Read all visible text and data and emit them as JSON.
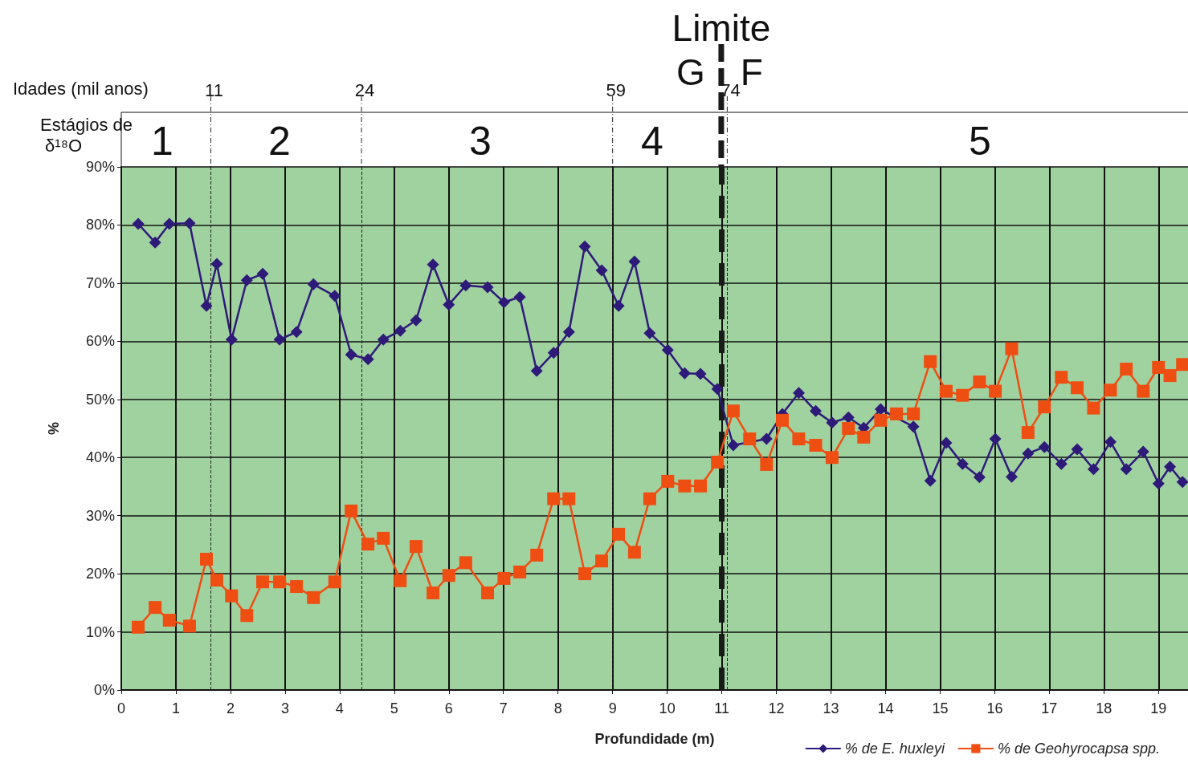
{
  "chart_data": {
    "type": "line",
    "xlabel": "Profundidade (m)",
    "ylabel": "%",
    "xlim": [
      0,
      19.54
    ],
    "xticks": [
      0,
      1,
      2,
      3,
      4,
      5,
      6,
      7,
      8,
      9,
      10,
      11,
      12,
      13,
      14,
      15,
      16,
      17,
      18,
      19
    ],
    "ylim": [
      0,
      90
    ],
    "yticks": [
      {
        "value": 0,
        "label": "0%"
      },
      {
        "value": 10,
        "label": "10%"
      },
      {
        "value": 20,
        "label": "20%"
      },
      {
        "value": 30,
        "label": "30%"
      },
      {
        "value": 40,
        "label": "40%"
      },
      {
        "value": 50,
        "label": "50%"
      },
      {
        "value": 60,
        "label": "60%"
      },
      {
        "value": 70,
        "label": "70%"
      },
      {
        "value": 80,
        "label": "80%"
      },
      {
        "value": 90,
        "label": "90%"
      }
    ],
    "grid": true,
    "legend": "bottom right",
    "series": [
      {
        "name": "% de E. huxleyi",
        "color": "#2e1a78",
        "marker": "diamond",
        "x": [
          0.31,
          0.62,
          0.88,
          1.25,
          1.56,
          1.75,
          2.02,
          2.3,
          2.59,
          2.9,
          3.21,
          3.52,
          3.91,
          4.21,
          4.52,
          4.8,
          5.11,
          5.4,
          5.71,
          6.0,
          6.31,
          6.71,
          7.01,
          7.3,
          7.61,
          7.92,
          8.2,
          8.49,
          8.8,
          9.11,
          9.4,
          9.68,
          10.01,
          10.32,
          10.61,
          10.92,
          11.21,
          11.82,
          12.11,
          12.41,
          12.72,
          13.02,
          13.32,
          13.6,
          13.91,
          14.51,
          14.82,
          15.11,
          15.41,
          15.72,
          16.01,
          16.31,
          16.61,
          16.91,
          17.22,
          17.51,
          17.81,
          18.12,
          18.41,
          18.72,
          19.0,
          19.21,
          19.44
        ],
        "values": [
          80.2,
          77.0,
          80.2,
          80.3,
          66.1,
          73.3,
          60.3,
          70.5,
          71.6,
          60.3,
          61.6,
          69.8,
          67.8,
          57.7,
          56.9,
          60.3,
          61.8,
          63.6,
          73.2,
          66.3,
          69.6,
          69.3,
          66.7,
          67.6,
          54.9,
          58.0,
          61.6,
          76.3,
          72.2,
          66.1,
          73.7,
          61.4,
          58.5,
          54.5,
          54.4,
          51.8,
          42.1,
          43.2,
          47.5,
          51.1,
          48.0,
          46.0,
          46.9,
          45.1,
          48.3,
          45.3,
          36.0,
          42.5,
          38.9,
          36.6,
          43.2,
          36.7,
          40.7,
          41.8,
          38.9,
          41.4,
          38.0,
          42.7,
          38.0,
          41.0,
          35.5,
          38.4,
          35.8
        ]
      },
      {
        "name": "% de Geohyrocapsa spp.",
        "color": "#ee4e12",
        "marker": "square",
        "x": [
          0.31,
          0.62,
          0.88,
          1.25,
          1.56,
          1.75,
          2.02,
          2.3,
          2.59,
          2.9,
          3.21,
          3.52,
          3.91,
          4.21,
          4.52,
          4.8,
          5.11,
          5.4,
          5.71,
          6.0,
          6.31,
          6.71,
          7.01,
          7.3,
          7.61,
          7.92,
          8.2,
          8.49,
          8.8,
          9.11,
          9.4,
          9.68,
          10.01,
          10.32,
          10.61,
          10.92,
          11.21,
          11.51,
          11.82,
          12.11,
          12.41,
          12.72,
          13.02,
          13.32,
          13.6,
          13.91,
          14.2,
          14.51,
          14.82,
          15.11,
          15.41,
          15.72,
          16.01,
          16.31,
          16.61,
          16.91,
          17.22,
          17.51,
          17.81,
          18.12,
          18.41,
          18.72,
          19.0,
          19.21,
          19.44
        ],
        "values": [
          10.8,
          14.2,
          12.0,
          11.0,
          22.5,
          18.9,
          16.2,
          12.8,
          18.6,
          18.6,
          17.8,
          15.9,
          18.6,
          30.8,
          25.1,
          26.1,
          18.8,
          24.7,
          16.7,
          19.7,
          21.9,
          16.7,
          19.2,
          20.3,
          23.2,
          32.9,
          32.9,
          20.0,
          22.2,
          26.8,
          23.7,
          32.9,
          35.9,
          35.1,
          35.1,
          39.2,
          48.0,
          43.2,
          38.8,
          46.4,
          43.2,
          42.1,
          40.0,
          45.0,
          43.5,
          46.4,
          47.5,
          47.5,
          56.5,
          51.4,
          50.7,
          53.0,
          51.4,
          58.7,
          44.3,
          48.7,
          53.8,
          52.0,
          48.5,
          51.6,
          55.2,
          51.4,
          55.5,
          54.1,
          56.0
        ]
      }
    ],
    "ref_lines": [
      {
        "axis": "x",
        "value": 1.64,
        "line_style": "dashed"
      },
      {
        "axis": "x",
        "value": 4.4,
        "line_style": "dashed"
      },
      {
        "axis": "x",
        "value": 9.0,
        "line_style": "dashed"
      },
      {
        "axis": "x",
        "value": 11.1,
        "line_style": "dashed"
      },
      {
        "axis": "x",
        "value": 10.99,
        "label": "Limite",
        "line_style": "dashed",
        "color": "#1a1a1a"
      }
    ],
    "annotations": [
      "Idades (mil anos)",
      "Estágios de δ¹⁸O",
      "G",
      "F",
      "1",
      "2",
      "3",
      "4",
      "5",
      "11",
      "24",
      "59",
      "74"
    ]
  }
}
